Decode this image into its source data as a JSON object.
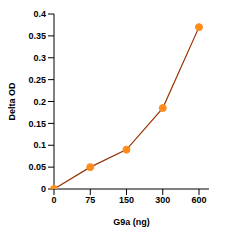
{
  "chart_data": {
    "type": "line",
    "categories": [
      "0",
      "75",
      "150",
      "300",
      "600"
    ],
    "values": [
      0,
      0.05,
      0.09,
      0.185,
      0.37
    ],
    "color": "#993300",
    "marker": "circle",
    "xlabel": "G9a (ng)",
    "ylabel": "Delta OD",
    "ylim": [
      0,
      0.4
    ],
    "yticks": [
      0,
      0.05,
      0.1,
      0.15,
      0.2,
      0.25,
      0.3,
      0.35,
      0.4
    ],
    "grid": false
  }
}
